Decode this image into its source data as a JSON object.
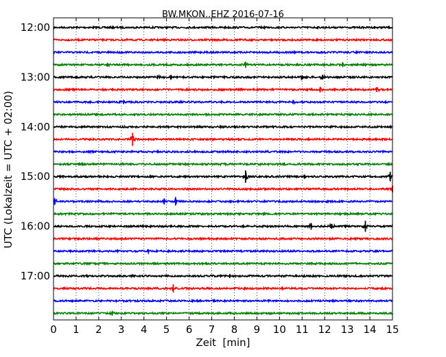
{
  "chart_data": {
    "type": "line",
    "title": "BW.MKON..EHZ 2016-07-16",
    "xlabel": "Zeit  [min]",
    "ylabel": "UTC (Lokalzeit = UTC + 02:00)",
    "xlim": [
      0,
      15
    ],
    "x_ticks": [
      0,
      1,
      2,
      3,
      4,
      5,
      6,
      7,
      8,
      9,
      10,
      11,
      12,
      13,
      14,
      15
    ],
    "y_ticks": [
      "12:00",
      "13:00",
      "14:00",
      "15:00",
      "16:00",
      "17:00"
    ],
    "grid": "vertical dotted",
    "traces": [
      {
        "start": "12:00",
        "color": "#000000",
        "events": []
      },
      {
        "start": "12:15",
        "color": "#ff0000",
        "events": []
      },
      {
        "start": "12:30",
        "color": "#0000ff",
        "events": []
      },
      {
        "start": "12:45",
        "color": "#008000",
        "events": [
          {
            "t": 2.4,
            "amp": 0.25
          },
          {
            "t": 8.5,
            "amp": 0.45
          },
          {
            "t": 12.8,
            "amp": 0.35
          }
        ]
      },
      {
        "start": "13:00",
        "color": "#000000",
        "events": [
          {
            "t": 4.6,
            "amp": 0.3
          },
          {
            "t": 5.2,
            "amp": 0.35
          },
          {
            "t": 11.0,
            "amp": 0.3
          },
          {
            "t": 11.9,
            "amp": 0.35
          }
        ]
      },
      {
        "start": "13:15",
        "color": "#ff0000",
        "events": [
          {
            "t": 11.8,
            "amp": 0.4
          },
          {
            "t": 14.3,
            "amp": 0.35
          }
        ]
      },
      {
        "start": "13:30",
        "color": "#0000ff",
        "events": [
          {
            "t": 3.1,
            "amp": 0.3
          },
          {
            "t": 10.6,
            "amp": 0.3
          }
        ]
      },
      {
        "start": "13:45",
        "color": "#008000",
        "events": []
      },
      {
        "start": "14:00",
        "color": "#000000",
        "events": []
      },
      {
        "start": "14:15",
        "color": "#ff0000",
        "events": [
          {
            "t": 3.5,
            "amp": 0.95
          }
        ]
      },
      {
        "start": "14:30",
        "color": "#0000ff",
        "events": []
      },
      {
        "start": "14:45",
        "color": "#008000",
        "events": []
      },
      {
        "start": "15:00",
        "color": "#000000",
        "events": [
          {
            "t": 8.5,
            "amp": 0.9
          },
          {
            "t": 11.1,
            "amp": 0.3
          },
          {
            "t": 14.9,
            "amp": 0.7
          }
        ]
      },
      {
        "start": "15:15",
        "color": "#ff0000",
        "events": [
          {
            "t": 15.0,
            "amp": 0.5
          }
        ]
      },
      {
        "start": "15:30",
        "color": "#0000ff",
        "events": [
          {
            "t": 0.05,
            "amp": 0.5
          },
          {
            "t": 4.9,
            "amp": 0.45
          },
          {
            "t": 5.4,
            "amp": 0.6
          }
        ]
      },
      {
        "start": "15:45",
        "color": "#008000",
        "events": []
      },
      {
        "start": "16:00",
        "color": "#000000",
        "events": [
          {
            "t": 11.4,
            "amp": 0.5
          },
          {
            "t": 12.3,
            "amp": 0.35
          },
          {
            "t": 13.8,
            "amp": 0.8
          }
        ]
      },
      {
        "start": "16:15",
        "color": "#ff0000",
        "events": []
      },
      {
        "start": "16:30",
        "color": "#0000ff",
        "events": [
          {
            "t": 4.2,
            "amp": 0.3
          }
        ]
      },
      {
        "start": "16:45",
        "color": "#008000",
        "events": []
      },
      {
        "start": "17:00",
        "color": "#000000",
        "events": [
          {
            "t": 7.8,
            "amp": 0.3
          }
        ]
      },
      {
        "start": "17:15",
        "color": "#ff0000",
        "events": [
          {
            "t": 5.3,
            "amp": 0.6
          }
        ]
      },
      {
        "start": "17:30",
        "color": "#0000ff",
        "events": []
      },
      {
        "start": "17:45",
        "color": "#008000",
        "events": [
          {
            "t": 2.6,
            "amp": 0.35
          }
        ]
      }
    ]
  }
}
